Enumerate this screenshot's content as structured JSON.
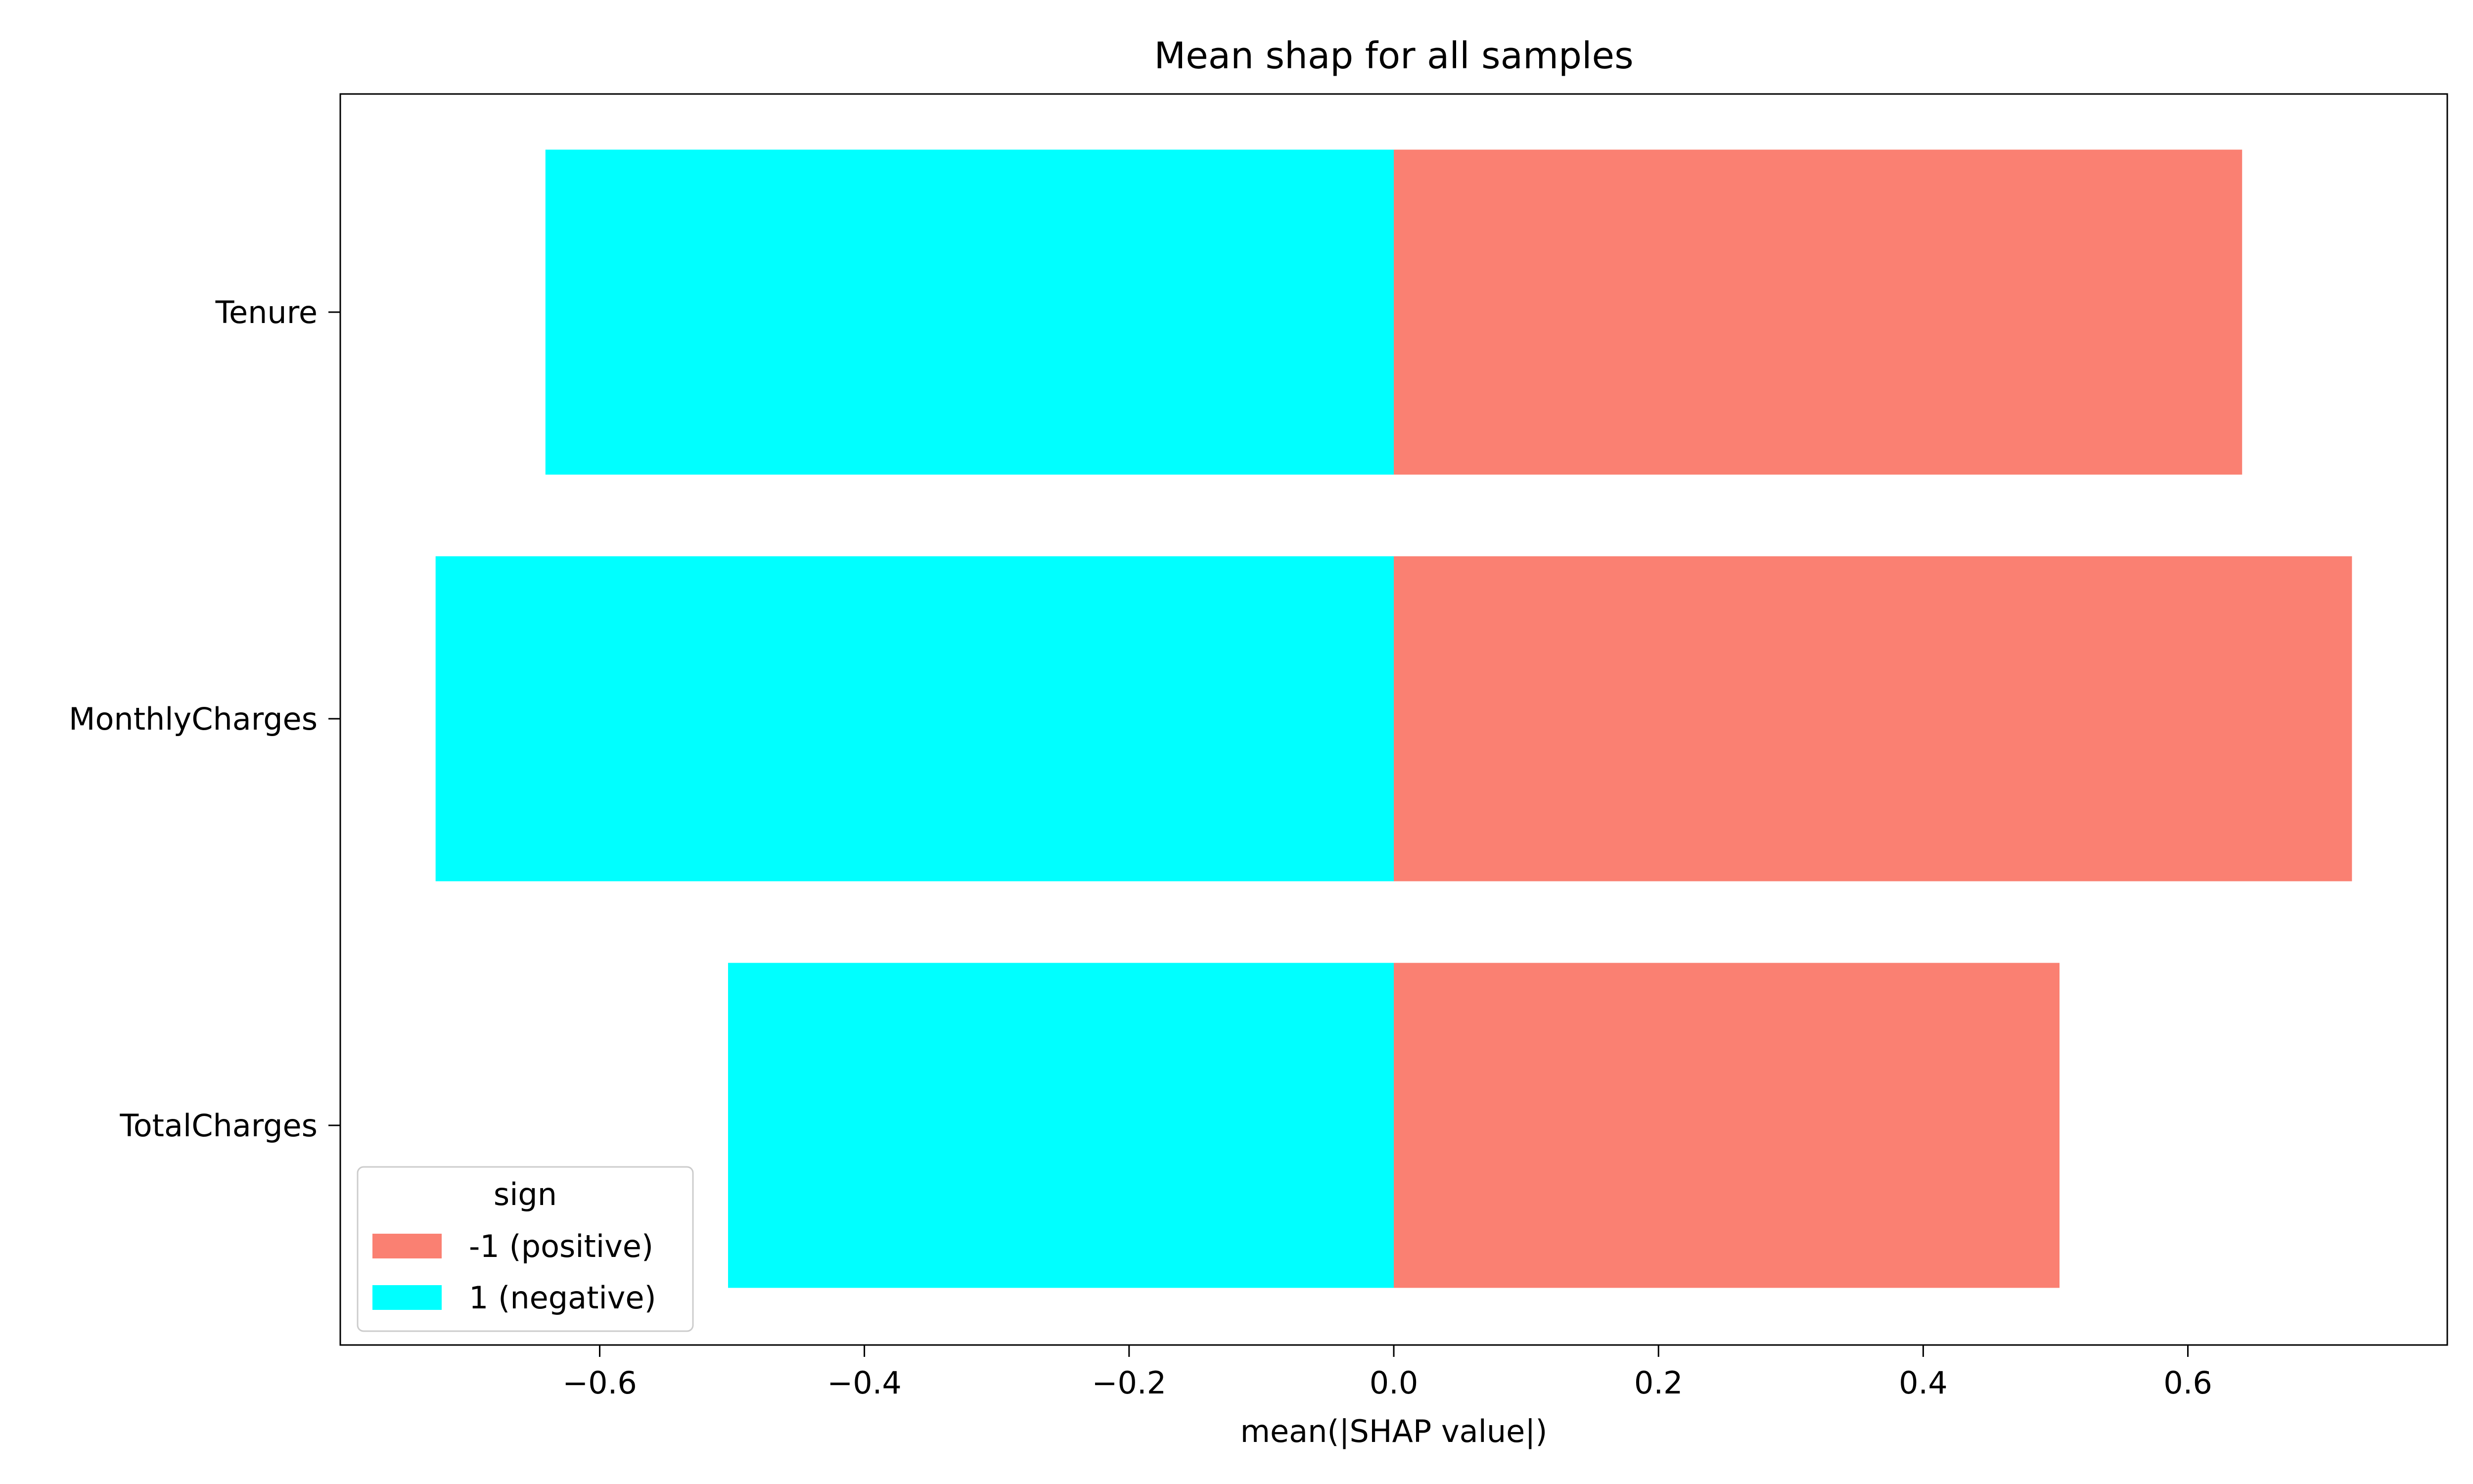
{
  "chart_data": {
    "type": "bar",
    "orientation": "horizontal",
    "title": "Mean shap for all samples",
    "xlabel": "mean(|SHAP value|)",
    "ylabel": "",
    "categories": [
      "Tenure",
      "MonthlyCharges",
      "TotalCharges"
    ],
    "series": [
      {
        "name": "-1 (positive)",
        "color": "#fa8072",
        "values": [
          0.641,
          0.724,
          0.503
        ]
      },
      {
        "name": "1 (negative)",
        "color": "#00ffff",
        "values": [
          -0.641,
          -0.724,
          -0.503
        ]
      }
    ],
    "xlim": [
      -0.796,
      0.796
    ],
    "xticks": [
      -0.6,
      -0.4,
      -0.2,
      0.0,
      0.2,
      0.4,
      0.6
    ],
    "xtick_labels": [
      "−0.6",
      "−0.4",
      "−0.2",
      "0.0",
      "0.2",
      "0.4",
      "0.6"
    ],
    "grid": false,
    "legend": {
      "title": "sign",
      "placement": "lower-left"
    }
  }
}
